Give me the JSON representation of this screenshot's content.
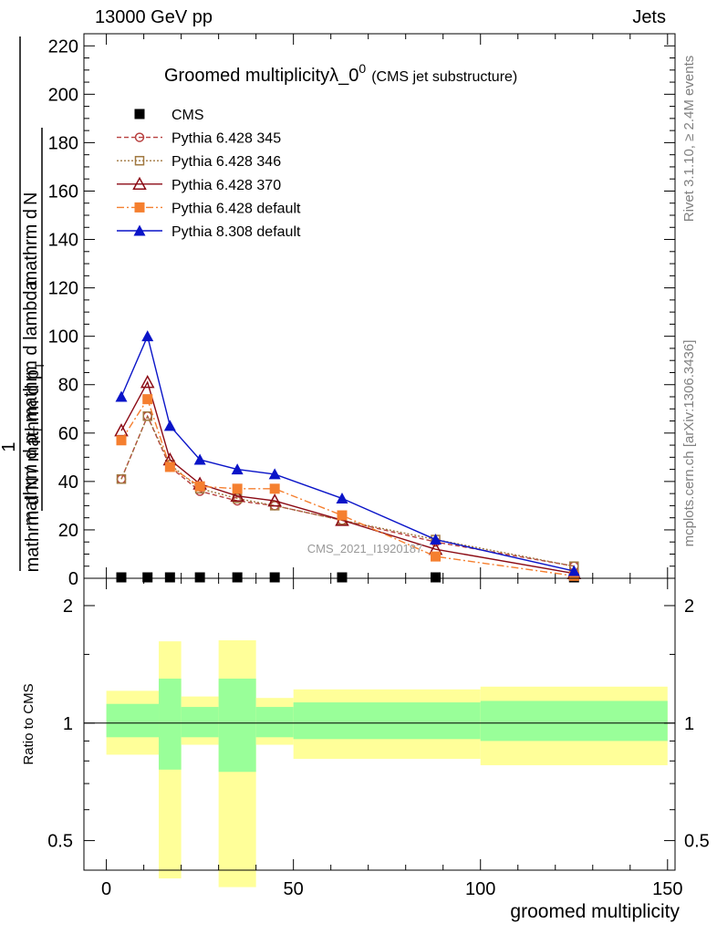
{
  "header": {
    "left_label": "13000 GeV pp",
    "right_label": "Jets"
  },
  "side_labels": {
    "rivet": "Rivet 3.1.10, ≥ 2.4M events",
    "mcplots": "mcplots.cern.ch [arXiv:1306.3436]",
    "watermark": "CMS_2021_I1920187"
  },
  "colors": {
    "cms": "#000000",
    "p345": "#b8403f",
    "p346": "#a07840",
    "p370": "#8b0a14",
    "p6def": "#f57f2f",
    "p8def": "#0a14c8",
    "band_yellow": "#ffff99",
    "band_green": "#99ff99"
  },
  "chart_data": [
    {
      "type": "line",
      "title": "Groomed multiplicityλ_0",
      "title_superscript": "0",
      "title_suffix": "(CMS jet substructure)",
      "ylabel_num": "1",
      "ylabel_den": "mathrm d N / mathrm d p",
      "ylabel_sub": "T",
      "ylabel_num_top": "mathrm d",
      "ylabel_n": "N",
      "ylabel_den_top": "mathrm d p",
      "ylabel_den_rest": "mathrm d lambda",
      "xlim": [
        -6,
        152
      ],
      "ylim": [
        0,
        225
      ],
      "y_ticks": [
        0,
        20,
        40,
        60,
        80,
        100,
        120,
        140,
        160,
        180,
        200,
        220
      ],
      "series": [
        {
          "name": "CMS",
          "key": "cms",
          "marker": "square",
          "x": [
            4,
            11,
            17,
            25,
            35,
            45,
            63,
            88,
            125
          ],
          "y": [
            0.3,
            0.3,
            0.3,
            0.3,
            0.3,
            0.3,
            0.3,
            0.3,
            0.3
          ]
        },
        {
          "name": "Pythia 6.428 345",
          "key": "p345",
          "marker": "circle-open",
          "dash": "5,3",
          "x": [
            4,
            11,
            17,
            25,
            35,
            45,
            63,
            88,
            125
          ],
          "y": [
            41,
            67,
            46,
            36,
            32,
            30,
            24,
            15,
            5
          ]
        },
        {
          "name": "Pythia 6.428 346",
          "key": "p346",
          "marker": "square-open",
          "dash": "2,2",
          "x": [
            4,
            11,
            17,
            25,
            35,
            45,
            63,
            88,
            125
          ],
          "y": [
            41,
            67,
            47,
            37,
            33,
            30,
            24,
            16,
            5
          ]
        },
        {
          "name": "Pythia 6.428 370",
          "key": "p370",
          "marker": "triangle-open",
          "dash": "",
          "x": [
            4,
            11,
            17,
            25,
            35,
            45,
            63,
            88,
            125
          ],
          "y": [
            61,
            81,
            49,
            39,
            34,
            32,
            24,
            12,
            2
          ]
        },
        {
          "name": "Pythia 6.428 default",
          "key": "p6def",
          "marker": "square",
          "dash": "8,3,2,3",
          "x": [
            4,
            11,
            17,
            25,
            35,
            45,
            63,
            88,
            125
          ],
          "y": [
            57,
            74,
            46,
            38,
            37,
            37,
            26,
            9,
            1
          ]
        },
        {
          "name": "Pythia 8.308 default",
          "key": "p8def",
          "marker": "triangle",
          "dash": "",
          "x": [
            4,
            11,
            17,
            25,
            35,
            45,
            63,
            88,
            125
          ],
          "y": [
            75,
            100,
            63,
            49,
            45,
            43,
            33,
            16,
            3
          ]
        }
      ]
    },
    {
      "type": "area",
      "ylabel": "Ratio to CMS",
      "xlabel": "groomed multiplicity",
      "xlim": [
        -6,
        152
      ],
      "ylim": [
        0.42,
        2.35
      ],
      "log_y": true,
      "x_ticks": [
        0,
        50,
        100,
        150
      ],
      "y_ticks": [
        0.5,
        1,
        2
      ],
      "reference_line": 1,
      "bins": [
        {
          "x0": 0,
          "x1": 14,
          "yel": [
            0.83,
            1.21
          ],
          "grn": [
            0.92,
            1.12
          ]
        },
        {
          "x0": 14,
          "x1": 20,
          "yel": [
            0.4,
            1.62
          ],
          "grn": [
            0.76,
            1.3
          ]
        },
        {
          "x0": 20,
          "x1": 30,
          "yel": [
            0.88,
            1.17
          ],
          "grn": [
            0.92,
            1.1
          ]
        },
        {
          "x0": 30,
          "x1": 40,
          "yel": [
            0.38,
            1.63
          ],
          "grn": [
            0.75,
            1.3
          ]
        },
        {
          "x0": 40,
          "x1": 50,
          "yel": [
            0.88,
            1.16
          ],
          "grn": [
            0.92,
            1.1
          ]
        },
        {
          "x0": 50,
          "x1": 100,
          "yel": [
            0.81,
            1.22
          ],
          "grn": [
            0.91,
            1.13
          ]
        },
        {
          "x0": 100,
          "x1": 150,
          "yel": [
            0.78,
            1.24
          ],
          "grn": [
            0.9,
            1.14
          ]
        }
      ]
    }
  ]
}
